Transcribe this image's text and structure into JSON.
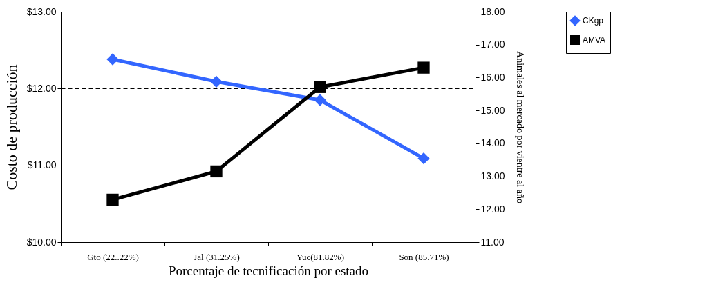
{
  "chart_data": {
    "type": "line",
    "xlabel": "Porcentaje de tecnificación por estado",
    "ylabel": "Costo de producción",
    "y2label": "Animales al mercado por vientre al año",
    "categories": [
      "Gto (22..22%)",
      "Jal (31.25%)",
      "Yuc(81.82%)",
      "Son (85.71%)"
    ],
    "series": [
      {
        "name": "CKgp",
        "color": "#3366ff",
        "marker": "diamond",
        "values": [
          12.38,
          12.09,
          11.85,
          11.09
        ]
      },
      {
        "name": "AMVA",
        "color": "#000000",
        "marker": "square",
        "axis": "y2",
        "values": [
          12.29,
          13.15,
          15.71,
          16.3
        ]
      }
    ],
    "ylim": [
      10,
      13
    ],
    "yticks": [
      {
        "value": 10,
        "label": "$10.00"
      },
      {
        "value": 11,
        "label": "$11.00"
      },
      {
        "value": 12,
        "label": "$12.00"
      },
      {
        "value": 13,
        "label": "$13.00"
      }
    ],
    "y2lim": [
      11,
      18
    ],
    "y2ticks": [
      {
        "value": 11,
        "label": "11.00"
      },
      {
        "value": 12,
        "label": "12.00"
      },
      {
        "value": 13,
        "label": "13.00"
      },
      {
        "value": 14,
        "label": "14.00"
      },
      {
        "value": 15,
        "label": "15.00"
      },
      {
        "value": 16,
        "label": "16.00"
      },
      {
        "value": 17,
        "label": "17.00"
      },
      {
        "value": 18,
        "label": "18.00"
      }
    ],
    "grid": "y",
    "legend": "right",
    "line_style": "solid"
  }
}
